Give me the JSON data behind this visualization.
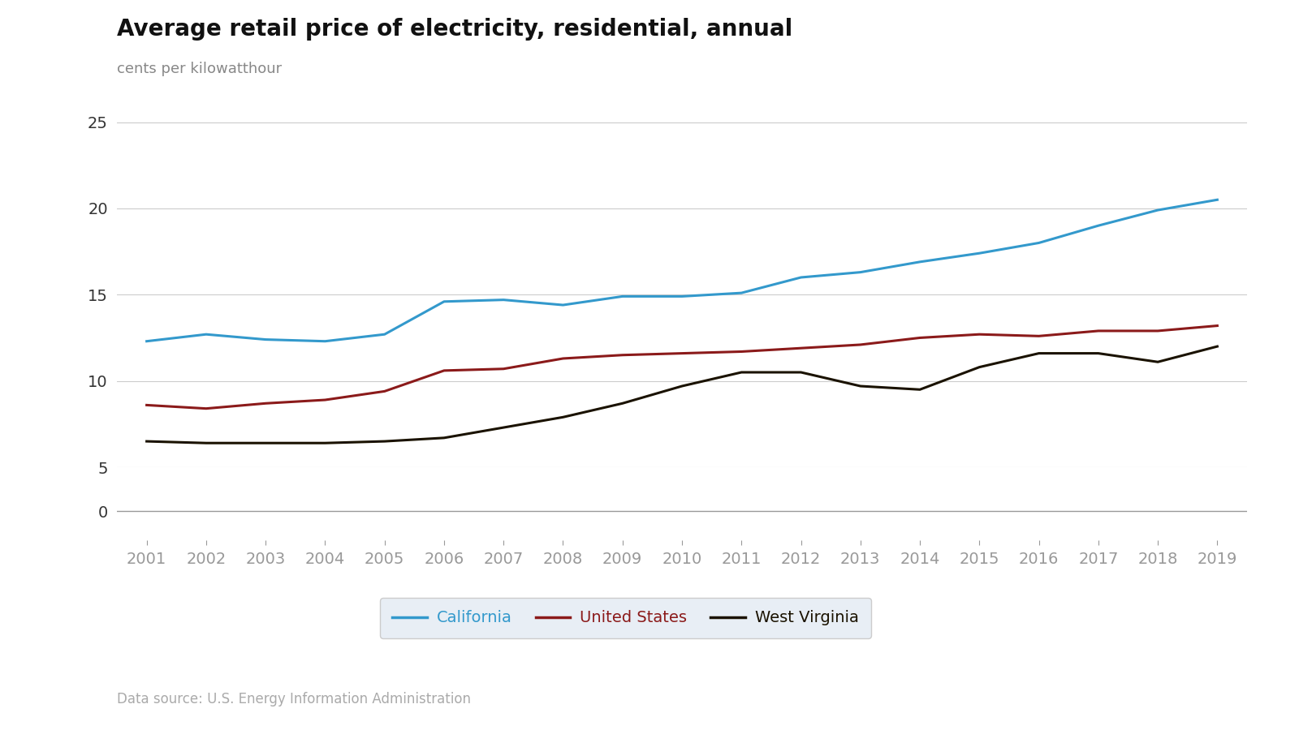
{
  "title": "Average retail price of electricity, residential, annual",
  "ylabel": "cents per kilowatthour",
  "source": "Data source: U.S. Energy Information Administration",
  "years": [
    2001,
    2002,
    2003,
    2004,
    2005,
    2006,
    2007,
    2008,
    2009,
    2010,
    2011,
    2012,
    2013,
    2014,
    2015,
    2016,
    2017,
    2018,
    2019
  ],
  "california": [
    12.3,
    12.7,
    12.4,
    12.3,
    12.7,
    14.6,
    14.7,
    14.4,
    14.9,
    14.9,
    15.1,
    16.0,
    16.3,
    16.9,
    17.4,
    18.0,
    19.0,
    19.9,
    20.5
  ],
  "united_states": [
    8.6,
    8.4,
    8.7,
    8.9,
    9.4,
    10.6,
    10.7,
    11.3,
    11.5,
    11.6,
    11.7,
    11.9,
    12.1,
    12.5,
    12.7,
    12.6,
    12.9,
    12.9,
    13.2
  ],
  "west_virginia": [
    6.5,
    6.4,
    6.4,
    6.4,
    6.5,
    6.7,
    7.3,
    7.9,
    8.7,
    9.7,
    10.5,
    10.5,
    9.7,
    9.5,
    10.8,
    11.6,
    11.6,
    11.1,
    12.0
  ],
  "california_color": "#3399CC",
  "us_color": "#8B1A1A",
  "wv_color": "#1a1200",
  "background_color": "#ffffff",
  "grid_color": "#cccccc",
  "title_fontsize": 20,
  "label_fontsize": 13,
  "legend_fontsize": 14,
  "source_fontsize": 12,
  "tick_fontsize": 14,
  "line_width": 2.2,
  "legend_labels": [
    "California",
    "United States",
    "West Virginia"
  ]
}
